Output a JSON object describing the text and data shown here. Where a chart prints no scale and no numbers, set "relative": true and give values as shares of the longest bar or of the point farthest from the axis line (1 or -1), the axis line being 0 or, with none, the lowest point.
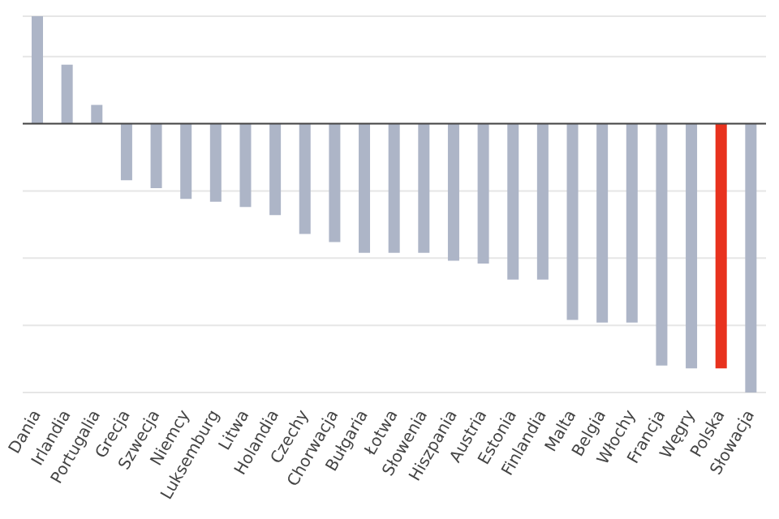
{
  "chart_data": {
    "type": "bar",
    "relative": true,
    "grid": "y",
    "categories": [
      "Dania",
      "Irlandia",
      "Portugalia",
      "Grecja",
      "Szwecja",
      "Niemcy",
      "Luksemburg",
      "Litwa",
      "Holandia",
      "Czechy",
      "Chorwacja",
      "Bułgaria",
      "Łotwa",
      "Słowenia",
      "Hiszpania",
      "Austria",
      "Estonia",
      "Finlandia",
      "Malta",
      "Belgia",
      "Włochy",
      "Francja",
      "Węgry",
      "Polska",
      "Słowacja"
    ],
    "values": [
      0.4,
      0.22,
      0.07,
      -0.21,
      -0.24,
      -0.28,
      -0.29,
      -0.31,
      -0.34,
      -0.41,
      -0.44,
      -0.48,
      -0.48,
      -0.48,
      -0.51,
      -0.52,
      -0.58,
      -0.58,
      -0.73,
      -0.74,
      -0.74,
      -0.9,
      -0.91,
      -0.91,
      -1
    ],
    "colors": [
      "#adb5c7",
      "#adb5c7",
      "#adb5c7",
      "#adb5c7",
      "#adb5c7",
      "#adb5c7",
      "#adb5c7",
      "#adb5c7",
      "#adb5c7",
      "#adb5c7",
      "#adb5c7",
      "#adb5c7",
      "#adb5c7",
      "#adb5c7",
      "#adb5c7",
      "#adb5c7",
      "#adb5c7",
      "#adb5c7",
      "#adb5c7",
      "#adb5c7",
      "#adb5c7",
      "#adb5c7",
      "#adb5c7",
      "#e8321e",
      "#adb5c7"
    ]
  }
}
